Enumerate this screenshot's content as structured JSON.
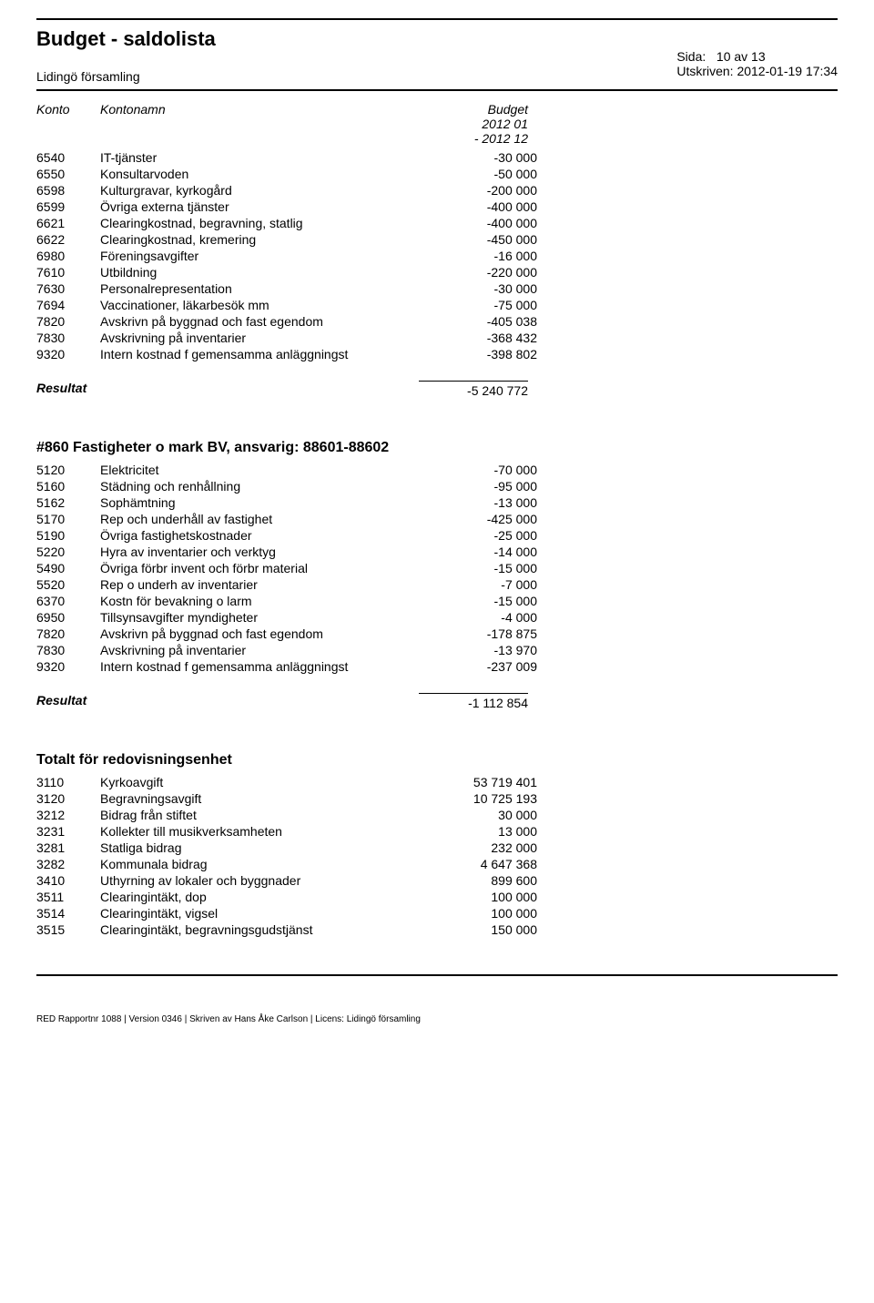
{
  "header": {
    "title": "Budget - saldolista",
    "subtitle": "Lidingö församling",
    "page_label": "Sida:",
    "page_value": "10 av 13",
    "printed_label": "Utskriven:",
    "printed_value": "2012-01-19 17:34"
  },
  "columns": {
    "konto": "Konto",
    "kontonamn": "Kontonamn",
    "budget_line1": "Budget",
    "budget_line2": "2012 01",
    "budget_line3": "- 2012 12"
  },
  "section1": {
    "rows": [
      {
        "konto": "6540",
        "namn": "IT-tjänster",
        "budget": "-30 000"
      },
      {
        "konto": "6550",
        "namn": "Konsultarvoden",
        "budget": "-50 000"
      },
      {
        "konto": "6598",
        "namn": "Kulturgravar, kyrkogård",
        "budget": "-200 000"
      },
      {
        "konto": "6599",
        "namn": "Övriga externa tjänster",
        "budget": "-400 000"
      },
      {
        "konto": "6621",
        "namn": "Clearingkostnad, begravning, statlig",
        "budget": "-400 000"
      },
      {
        "konto": "6622",
        "namn": "Clearingkostnad, kremering",
        "budget": "-450 000"
      },
      {
        "konto": "6980",
        "namn": "Föreningsavgifter",
        "budget": "-16 000"
      },
      {
        "konto": "7610",
        "namn": "Utbildning",
        "budget": "-220 000"
      },
      {
        "konto": "7630",
        "namn": "Personalrepresentation",
        "budget": "-30 000"
      },
      {
        "konto": "7694",
        "namn": "Vaccinationer, läkarbesök mm",
        "budget": "-75 000"
      },
      {
        "konto": "7820",
        "namn": "Avskrivn på byggnad och fast egendom",
        "budget": "-405 038"
      },
      {
        "konto": "7830",
        "namn": "Avskrivning på inventarier",
        "budget": "-368 432"
      },
      {
        "konto": "9320",
        "namn": "Intern kostnad f gemensamma anläggningst",
        "budget": "-398 802"
      }
    ],
    "resultat_label": "Resultat",
    "resultat_value": "-5 240 772"
  },
  "section2": {
    "heading": "#860 Fastigheter o mark BV, ansvarig: 88601-88602",
    "rows": [
      {
        "konto": "5120",
        "namn": "Elektricitet",
        "budget": "-70 000"
      },
      {
        "konto": "5160",
        "namn": "Städning och renhållning",
        "budget": "-95 000"
      },
      {
        "konto": "5162",
        "namn": "Sophämtning",
        "budget": "-13 000"
      },
      {
        "konto": "5170",
        "namn": "Rep och underhåll av fastighet",
        "budget": "-425 000"
      },
      {
        "konto": "5190",
        "namn": "Övriga fastighetskostnader",
        "budget": "-25 000"
      },
      {
        "konto": "5220",
        "namn": "Hyra av inventarier och verktyg",
        "budget": "-14 000"
      },
      {
        "konto": "5490",
        "namn": "Övriga förbr invent och förbr material",
        "budget": "-15 000"
      },
      {
        "konto": "5520",
        "namn": "Rep o underh av inventarier",
        "budget": "-7 000"
      },
      {
        "konto": "6370",
        "namn": "Kostn för bevakning o larm",
        "budget": "-15 000"
      },
      {
        "konto": "6950",
        "namn": "Tillsynsavgifter myndigheter",
        "budget": "-4 000"
      },
      {
        "konto": "7820",
        "namn": "Avskrivn på byggnad och fast egendom",
        "budget": "-178 875"
      },
      {
        "konto": "7830",
        "namn": "Avskrivning på inventarier",
        "budget": "-13 970"
      },
      {
        "konto": "9320",
        "namn": "Intern kostnad f gemensamma anläggningst",
        "budget": "-237 009"
      }
    ],
    "resultat_label": "Resultat",
    "resultat_value": "-1 112 854"
  },
  "section3": {
    "heading": "Totalt för redovisningsenhet",
    "rows": [
      {
        "konto": "3110",
        "namn": "Kyrkoavgift",
        "budget": "53 719 401"
      },
      {
        "konto": "3120",
        "namn": "Begravningsavgift",
        "budget": "10 725 193"
      },
      {
        "konto": "3212",
        "namn": "Bidrag från stiftet",
        "budget": "30 000"
      },
      {
        "konto": "3231",
        "namn": "Kollekter till musikverksamheten",
        "budget": "13 000"
      },
      {
        "konto": "3281",
        "namn": "Statliga bidrag",
        "budget": "232 000"
      },
      {
        "konto": "3282",
        "namn": "Kommunala bidrag",
        "budget": "4 647 368"
      },
      {
        "konto": "3410",
        "namn": "Uthyrning av lokaler och byggnader",
        "budget": "899 600"
      },
      {
        "konto": "3511",
        "namn": "Clearingintäkt, dop",
        "budget": "100 000"
      },
      {
        "konto": "3514",
        "namn": "Clearingintäkt, vigsel",
        "budget": "100 000"
      },
      {
        "konto": "3515",
        "namn": "Clearingintäkt, begravningsgudstjänst",
        "budget": "150 000"
      }
    ]
  },
  "footer": "RED Rapportnr 1088  |  Version 0346  |  Skriven av Hans Åke Carlson  |  Licens: Lidingö församling"
}
